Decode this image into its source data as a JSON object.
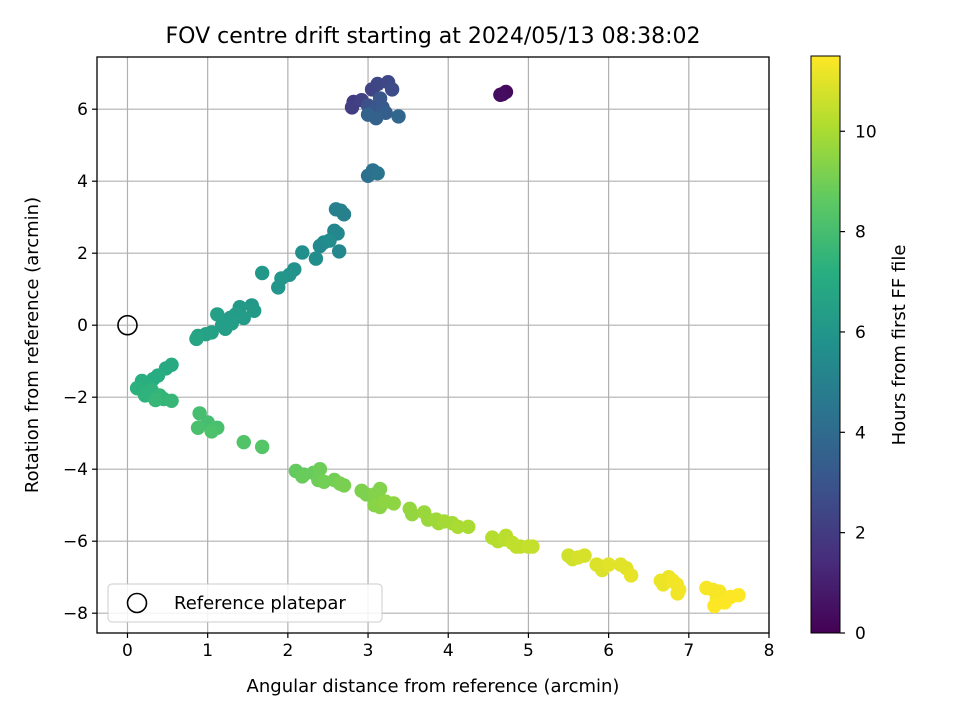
{
  "chart_data": {
    "type": "scatter",
    "title": "FOV centre drift starting at 2024/05/13 08:38:02",
    "xlabel": "Angular distance from reference (arcmin)",
    "ylabel": "Rotation from reference (arcmin)",
    "xlim": [
      -0.38,
      8.0
    ],
    "ylim": [
      -8.55,
      7.45
    ],
    "x_ticks": [
      0,
      1,
      2,
      3,
      4,
      5,
      6,
      7,
      8
    ],
    "y_ticks": [
      -8,
      -6,
      -4,
      -2,
      0,
      2,
      4,
      6
    ],
    "grid": true,
    "legend": {
      "position": "lower-left",
      "entries": [
        "Reference platepar"
      ]
    },
    "reference_point": {
      "x": 0,
      "y": 0
    },
    "colorbar": {
      "label": "Hours from first FF file",
      "colormap": "viridis",
      "range": [
        0,
        11.5
      ],
      "ticks": [
        0,
        2,
        4,
        6,
        8,
        10
      ]
    },
    "points": [
      {
        "x": 4.68,
        "y": 6.42,
        "h": 0.2
      },
      {
        "x": 4.72,
        "y": 6.48,
        "h": 0.3
      },
      {
        "x": 4.65,
        "y": 6.4,
        "h": 0.4
      },
      {
        "x": 2.82,
        "y": 6.2,
        "h": 2.0
      },
      {
        "x": 2.8,
        "y": 6.05,
        "h": 2.1
      },
      {
        "x": 2.92,
        "y": 6.25,
        "h": 2.2
      },
      {
        "x": 3.05,
        "y": 6.55,
        "h": 2.3
      },
      {
        "x": 3.12,
        "y": 6.7,
        "h": 2.4
      },
      {
        "x": 3.25,
        "y": 6.75,
        "h": 2.5
      },
      {
        "x": 3.3,
        "y": 6.55,
        "h": 2.6
      },
      {
        "x": 3.0,
        "y": 6.1,
        "h": 2.8
      },
      {
        "x": 3.08,
        "y": 6.0,
        "h": 3.0
      },
      {
        "x": 3.15,
        "y": 6.3,
        "h": 3.1
      },
      {
        "x": 3.18,
        "y": 6.05,
        "h": 3.2
      },
      {
        "x": 3.22,
        "y": 5.9,
        "h": 3.4
      },
      {
        "x": 3.1,
        "y": 5.75,
        "h": 3.5
      },
      {
        "x": 3.0,
        "y": 5.85,
        "h": 3.6
      },
      {
        "x": 3.38,
        "y": 5.8,
        "h": 3.8
      },
      {
        "x": 3.0,
        "y": 4.15,
        "h": 4.2
      },
      {
        "x": 3.06,
        "y": 4.3,
        "h": 4.3
      },
      {
        "x": 3.12,
        "y": 4.22,
        "h": 4.4
      },
      {
        "x": 2.6,
        "y": 3.22,
        "h": 4.9
      },
      {
        "x": 2.66,
        "y": 3.18,
        "h": 5.0
      },
      {
        "x": 2.7,
        "y": 3.08,
        "h": 5.0
      },
      {
        "x": 2.58,
        "y": 2.62,
        "h": 5.2
      },
      {
        "x": 2.62,
        "y": 2.55,
        "h": 5.3
      },
      {
        "x": 2.64,
        "y": 2.05,
        "h": 5.3
      },
      {
        "x": 2.45,
        "y": 2.3,
        "h": 5.4
      },
      {
        "x": 2.4,
        "y": 2.2,
        "h": 5.4
      },
      {
        "x": 2.52,
        "y": 2.35,
        "h": 5.5
      },
      {
        "x": 2.35,
        "y": 1.85,
        "h": 5.6
      },
      {
        "x": 2.18,
        "y": 2.02,
        "h": 5.7
      },
      {
        "x": 2.08,
        "y": 1.55,
        "h": 5.8
      },
      {
        "x": 2.02,
        "y": 1.4,
        "h": 5.9
      },
      {
        "x": 1.92,
        "y": 1.3,
        "h": 6.0
      },
      {
        "x": 1.88,
        "y": 1.05,
        "h": 6.0
      },
      {
        "x": 1.68,
        "y": 1.45,
        "h": 6.1
      },
      {
        "x": 1.55,
        "y": 0.55,
        "h": 6.1
      },
      {
        "x": 1.58,
        "y": 0.4,
        "h": 6.2
      },
      {
        "x": 1.4,
        "y": 0.5,
        "h": 6.2
      },
      {
        "x": 1.35,
        "y": 0.3,
        "h": 6.3
      },
      {
        "x": 1.28,
        "y": 0.2,
        "h": 6.3
      },
      {
        "x": 1.3,
        "y": 0.05,
        "h": 6.4
      },
      {
        "x": 1.18,
        "y": 0.0,
        "h": 6.4
      },
      {
        "x": 1.22,
        "y": -0.1,
        "h": 6.4
      },
      {
        "x": 1.12,
        "y": 0.3,
        "h": 6.5
      },
      {
        "x": 1.05,
        "y": -0.2,
        "h": 6.5
      },
      {
        "x": 0.98,
        "y": -0.25,
        "h": 6.6
      },
      {
        "x": 0.88,
        "y": -0.3,
        "h": 6.6
      },
      {
        "x": 0.86,
        "y": -0.38,
        "h": 6.7
      },
      {
        "x": 1.45,
        "y": 0.2,
        "h": 6.3
      },
      {
        "x": 0.55,
        "y": -1.1,
        "h": 7.0
      },
      {
        "x": 0.48,
        "y": -1.2,
        "h": 7.0
      },
      {
        "x": 0.38,
        "y": -1.4,
        "h": 7.1
      },
      {
        "x": 0.32,
        "y": -1.5,
        "h": 7.1
      },
      {
        "x": 0.25,
        "y": -1.65,
        "h": 7.2
      },
      {
        "x": 0.18,
        "y": -1.55,
        "h": 7.2
      },
      {
        "x": 0.12,
        "y": -1.75,
        "h": 7.3
      },
      {
        "x": 0.2,
        "y": -1.85,
        "h": 7.3
      },
      {
        "x": 0.22,
        "y": -1.95,
        "h": 7.4
      },
      {
        "x": 0.3,
        "y": -1.8,
        "h": 7.4
      },
      {
        "x": 0.4,
        "y": -1.95,
        "h": 7.5
      },
      {
        "x": 0.45,
        "y": -2.05,
        "h": 7.5
      },
      {
        "x": 0.55,
        "y": -2.1,
        "h": 7.6
      },
      {
        "x": 0.35,
        "y": -2.08,
        "h": 7.6
      },
      {
        "x": 0.9,
        "y": -2.45,
        "h": 8.0
      },
      {
        "x": 1.0,
        "y": -2.7,
        "h": 8.0
      },
      {
        "x": 1.12,
        "y": -2.85,
        "h": 8.1
      },
      {
        "x": 0.88,
        "y": -2.85,
        "h": 8.1
      },
      {
        "x": 1.05,
        "y": -2.95,
        "h": 8.2
      },
      {
        "x": 1.45,
        "y": -3.25,
        "h": 8.3
      },
      {
        "x": 1.68,
        "y": -3.38,
        "h": 8.4
      },
      {
        "x": 2.1,
        "y": -4.05,
        "h": 8.7
      },
      {
        "x": 2.2,
        "y": -4.15,
        "h": 8.7
      },
      {
        "x": 2.18,
        "y": -4.2,
        "h": 8.8
      },
      {
        "x": 2.32,
        "y": -4.1,
        "h": 8.8
      },
      {
        "x": 2.4,
        "y": -4.0,
        "h": 8.9
      },
      {
        "x": 2.38,
        "y": -4.3,
        "h": 8.9
      },
      {
        "x": 2.45,
        "y": -4.35,
        "h": 9.0
      },
      {
        "x": 2.58,
        "y": -4.3,
        "h": 9.0
      },
      {
        "x": 2.65,
        "y": -4.4,
        "h": 9.1
      },
      {
        "x": 2.7,
        "y": -4.45,
        "h": 9.1
      },
      {
        "x": 2.92,
        "y": -4.6,
        "h": 9.2
      },
      {
        "x": 2.98,
        "y": -4.7,
        "h": 9.2
      },
      {
        "x": 3.08,
        "y": -4.7,
        "h": 9.3
      },
      {
        "x": 3.15,
        "y": -4.55,
        "h": 9.3
      },
      {
        "x": 3.08,
        "y": -5.0,
        "h": 9.4
      },
      {
        "x": 3.15,
        "y": -5.05,
        "h": 9.4
      },
      {
        "x": 3.22,
        "y": -4.9,
        "h": 9.5
      },
      {
        "x": 3.32,
        "y": -4.95,
        "h": 9.5
      },
      {
        "x": 3.52,
        "y": -5.1,
        "h": 9.6
      },
      {
        "x": 3.55,
        "y": -5.25,
        "h": 9.6
      },
      {
        "x": 3.7,
        "y": -5.2,
        "h": 9.7
      },
      {
        "x": 3.75,
        "y": -5.4,
        "h": 9.7
      },
      {
        "x": 3.85,
        "y": -5.4,
        "h": 9.8
      },
      {
        "x": 3.88,
        "y": -5.5,
        "h": 9.8
      },
      {
        "x": 3.95,
        "y": -5.45,
        "h": 9.9
      },
      {
        "x": 4.05,
        "y": -5.5,
        "h": 9.9
      },
      {
        "x": 4.12,
        "y": -5.6,
        "h": 10.0
      },
      {
        "x": 4.25,
        "y": -5.6,
        "h": 10.0
      },
      {
        "x": 4.55,
        "y": -5.9,
        "h": 10.2
      },
      {
        "x": 4.62,
        "y": -6.0,
        "h": 10.2
      },
      {
        "x": 4.7,
        "y": -5.95,
        "h": 10.3
      },
      {
        "x": 4.72,
        "y": -5.85,
        "h": 10.3
      },
      {
        "x": 4.8,
        "y": -6.05,
        "h": 10.4
      },
      {
        "x": 4.85,
        "y": -6.15,
        "h": 10.4
      },
      {
        "x": 4.9,
        "y": -6.15,
        "h": 10.4
      },
      {
        "x": 5.0,
        "y": -6.15,
        "h": 10.5
      },
      {
        "x": 5.05,
        "y": -6.15,
        "h": 10.5
      },
      {
        "x": 5.5,
        "y": -6.4,
        "h": 10.7
      },
      {
        "x": 5.55,
        "y": -6.5,
        "h": 10.7
      },
      {
        "x": 5.62,
        "y": -6.45,
        "h": 10.8
      },
      {
        "x": 5.7,
        "y": -6.4,
        "h": 10.8
      },
      {
        "x": 5.85,
        "y": -6.65,
        "h": 10.9
      },
      {
        "x": 5.9,
        "y": -6.7,
        "h": 10.9
      },
      {
        "x": 5.92,
        "y": -6.8,
        "h": 10.9
      },
      {
        "x": 6.0,
        "y": -6.65,
        "h": 11.0
      },
      {
        "x": 6.15,
        "y": -6.65,
        "h": 11.0
      },
      {
        "x": 6.22,
        "y": -6.75,
        "h": 11.0
      },
      {
        "x": 6.28,
        "y": -6.95,
        "h": 11.1
      },
      {
        "x": 6.65,
        "y": -7.1,
        "h": 11.2
      },
      {
        "x": 6.68,
        "y": -7.2,
        "h": 11.2
      },
      {
        "x": 6.75,
        "y": -7.0,
        "h": 11.2
      },
      {
        "x": 6.8,
        "y": -7.1,
        "h": 11.3
      },
      {
        "x": 6.85,
        "y": -7.2,
        "h": 11.3
      },
      {
        "x": 6.88,
        "y": -7.35,
        "h": 11.3
      },
      {
        "x": 6.86,
        "y": -7.45,
        "h": 11.3
      },
      {
        "x": 7.22,
        "y": -7.3,
        "h": 11.4
      },
      {
        "x": 7.3,
        "y": -7.35,
        "h": 11.4
      },
      {
        "x": 7.38,
        "y": -7.4,
        "h": 11.4
      },
      {
        "x": 7.35,
        "y": -7.6,
        "h": 11.4
      },
      {
        "x": 7.32,
        "y": -7.8,
        "h": 11.5
      },
      {
        "x": 7.45,
        "y": -7.7,
        "h": 11.5
      },
      {
        "x": 7.52,
        "y": -7.55,
        "h": 11.5
      },
      {
        "x": 7.62,
        "y": -7.5,
        "h": 11.5
      }
    ]
  }
}
